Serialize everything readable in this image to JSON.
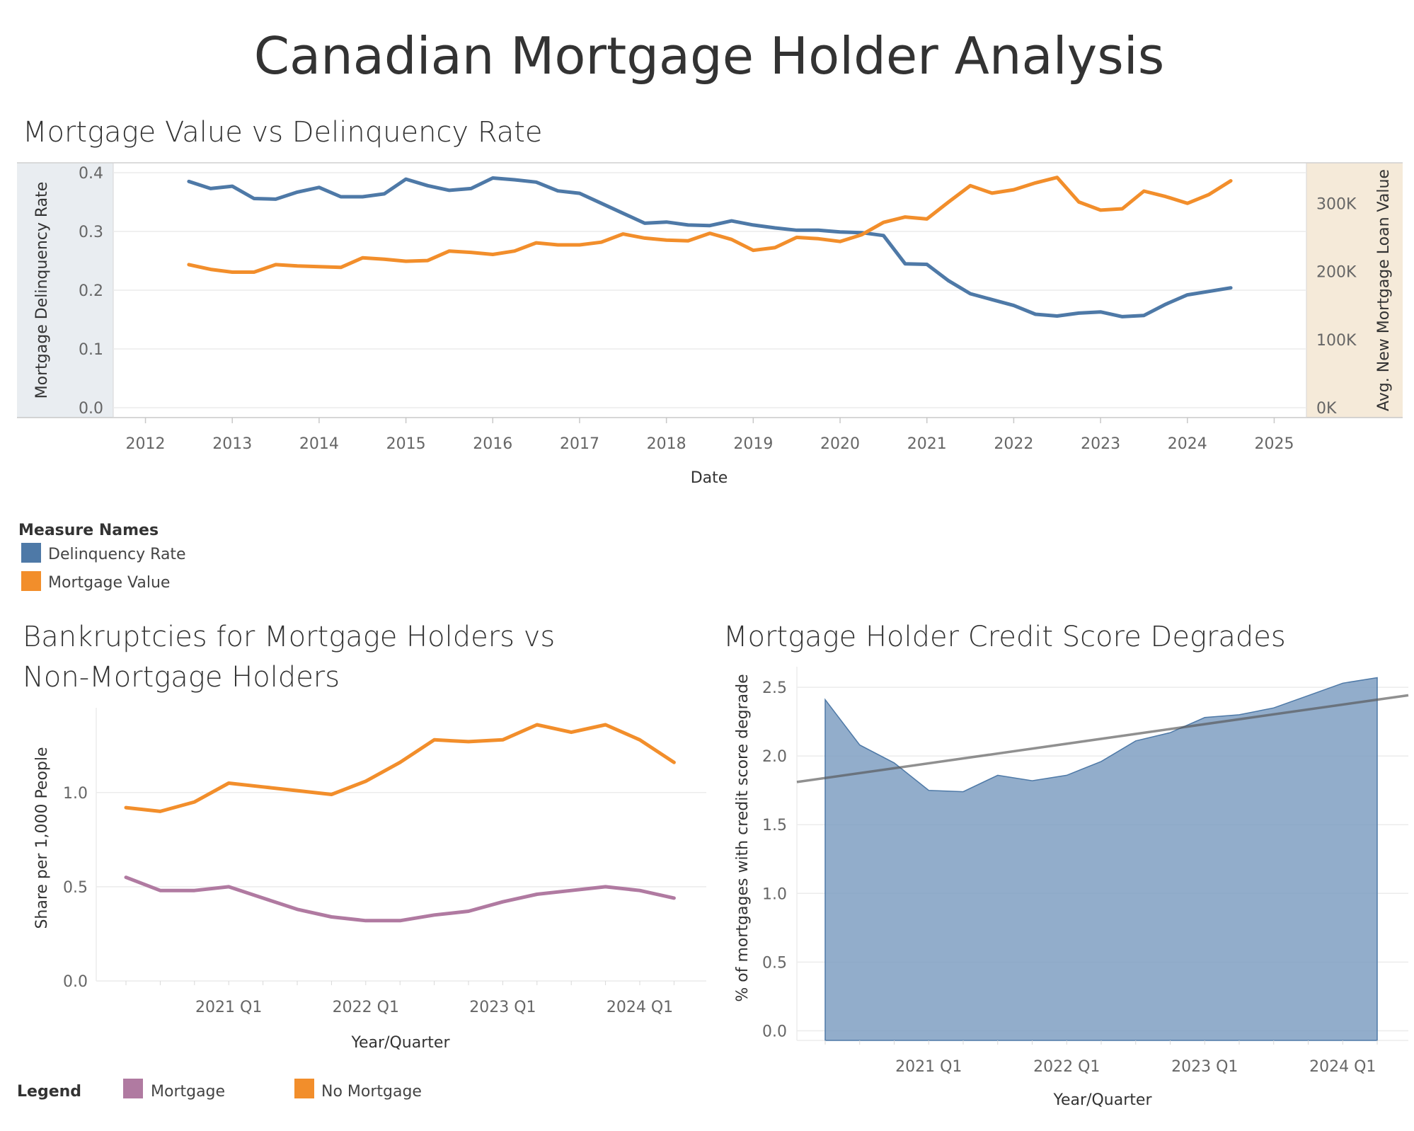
{
  "title": "Canadian Mortgage Holder Analysis",
  "colors": {
    "delinquency": "#4e79a7",
    "mortgage_value": "#f28e2b",
    "mortgage": "#b07aa1",
    "no_mortgage": "#f28e2b",
    "area_fill": "#7f9fc2",
    "area_stroke": "#4e79a7",
    "trend": "#555555",
    "left_axis_band": "#e9edf1",
    "right_axis_band": "#f5ead9"
  },
  "chart_data": [
    {
      "type": "line",
      "title": "Mortgage Value vs Delinquency Rate",
      "xlabel": "Date",
      "ylabel": "Mortgage Delinquency Rate",
      "y2label": "Avg. New Mortgage Loan Value",
      "xlim": [
        2011.8,
        2025.2
      ],
      "ylim": [
        0,
        0.4
      ],
      "y2lim": [
        0,
        345000
      ],
      "x_ticks": [
        "2012",
        "2013",
        "2014",
        "2015",
        "2016",
        "2017",
        "2018",
        "2019",
        "2020",
        "2021",
        "2022",
        "2023",
        "2024",
        "2025"
      ],
      "y_ticks": [
        "0.0",
        "0.1",
        "0.2",
        "0.3",
        "0.4"
      ],
      "y2_ticks": [
        "0K",
        "100K",
        "200K",
        "300K"
      ],
      "legend_title": "Measure Names",
      "legend_position": "bottom-left",
      "grid": true,
      "x": [
        2012.5,
        2012.75,
        2013.0,
        2013.25,
        2013.5,
        2013.75,
        2014.0,
        2014.25,
        2014.5,
        2014.75,
        2015.0,
        2015.25,
        2015.5,
        2015.75,
        2016.0,
        2016.25,
        2016.5,
        2016.75,
        2017.0,
        2017.25,
        2017.5,
        2017.75,
        2018.0,
        2018.25,
        2018.5,
        2018.75,
        2019.0,
        2019.25,
        2019.5,
        2019.75,
        2020.0,
        2020.25,
        2020.5,
        2020.75,
        2021.0,
        2021.25,
        2021.5,
        2021.75,
        2022.0,
        2022.25,
        2022.5,
        2022.75,
        2023.0,
        2023.25,
        2023.5,
        2023.75,
        2024.0,
        2024.25,
        2024.5
      ],
      "series": [
        {
          "name": "Delinquency Rate",
          "axis": "left",
          "values": [
            0.385,
            0.373,
            0.377,
            0.356,
            0.355,
            0.367,
            0.375,
            0.359,
            0.359,
            0.364,
            0.389,
            0.378,
            0.37,
            0.373,
            0.391,
            0.388,
            0.384,
            0.369,
            0.365,
            0.348,
            0.331,
            0.314,
            0.316,
            0.311,
            0.31,
            0.318,
            0.311,
            0.306,
            0.302,
            0.302,
            0.299,
            0.298,
            0.293,
            0.245,
            0.244,
            0.216,
            0.194,
            0.184,
            0.174,
            0.159,
            0.156,
            0.161,
            0.163,
            0.155,
            0.157,
            0.176,
            0.192,
            0.198,
            0.204
          ]
        },
        {
          "name": "Mortgage Value",
          "axis": "right",
          "values": [
            210000,
            203000,
            199000,
            199000,
            210000,
            208000,
            207000,
            206000,
            220000,
            218000,
            215000,
            216000,
            230000,
            228000,
            225000,
            230000,
            242000,
            239000,
            239000,
            243000,
            255000,
            249000,
            246000,
            245000,
            256000,
            247000,
            231000,
            235000,
            250000,
            248000,
            244000,
            254000,
            272000,
            280000,
            277000,
            302000,
            326000,
            315000,
            320000,
            330000,
            338000,
            302000,
            290000,
            292000,
            318000,
            310000,
            300000,
            313000,
            333000
          ]
        }
      ]
    },
    {
      "type": "line",
      "title": "Bankruptcies for Mortgage Holders vs Non-Mortgage Holders",
      "title_lines": [
        "Bankruptcies for Mortgage Holders vs",
        "Non-Mortgage Holders"
      ],
      "xlabel": "Year/Quarter",
      "ylabel": "Share per 1,000 People",
      "ylim": [
        0,
        1.45
      ],
      "y_ticks": [
        "0.0",
        "0.5",
        "1.0"
      ],
      "legend_title": "Legend",
      "legend_position": "bottom",
      "grid": true,
      "categories": [
        "2020 Q2",
        "2020 Q3",
        "2020 Q4",
        "2021 Q1",
        "2021 Q2",
        "2021 Q3",
        "2021 Q4",
        "2022 Q1",
        "2022 Q2",
        "2022 Q3",
        "2022 Q4",
        "2023 Q1",
        "2023 Q2",
        "2023 Q3",
        "2023 Q4",
        "2024 Q1",
        "2024 Q2"
      ],
      "tick_labels": [
        "2021 Q1",
        "2022 Q1",
        "2023 Q1",
        "2024 Q1"
      ],
      "series": [
        {
          "name": "Mortgage",
          "values": [
            0.55,
            0.48,
            0.48,
            0.5,
            0.44,
            0.38,
            0.34,
            0.32,
            0.32,
            0.35,
            0.37,
            0.42,
            0.46,
            0.48,
            0.5,
            0.48,
            0.44
          ]
        },
        {
          "name": "No Mortgage",
          "values": [
            0.92,
            0.9,
            0.95,
            1.05,
            1.03,
            1.01,
            0.99,
            1.06,
            1.16,
            1.28,
            1.27,
            1.28,
            1.36,
            1.32,
            1.36,
            1.28,
            1.16
          ]
        }
      ]
    },
    {
      "type": "area",
      "title": "Mortgage Holder Credit Score Degrades",
      "xlabel": "Year/Quarter",
      "ylabel": "% of mortgages with credit score degrade",
      "ylim": [
        -0.07,
        2.65
      ],
      "y_ticks": [
        "0.0",
        "0.5",
        "1.0",
        "1.5",
        "2.0",
        "2.5"
      ],
      "grid": true,
      "categories": [
        "2020 Q2",
        "2020 Q3",
        "2020 Q4",
        "2021 Q1",
        "2021 Q2",
        "2021 Q3",
        "2021 Q4",
        "2022 Q1",
        "2022 Q2",
        "2022 Q3",
        "2022 Q4",
        "2023 Q1",
        "2023 Q2",
        "2023 Q3",
        "2023 Q4",
        "2024 Q1",
        "2024 Q2"
      ],
      "tick_labels": [
        "2021 Q1",
        "2022 Q1",
        "2023 Q1",
        "2024 Q1"
      ],
      "values": [
        2.41,
        2.08,
        1.95,
        1.75,
        1.74,
        1.86,
        1.82,
        1.86,
        1.96,
        2.11,
        2.17,
        2.28,
        2.3,
        2.35,
        2.44,
        2.53,
        2.57
      ],
      "trend_line": {
        "start": 1.84,
        "end": 2.41
      }
    }
  ]
}
